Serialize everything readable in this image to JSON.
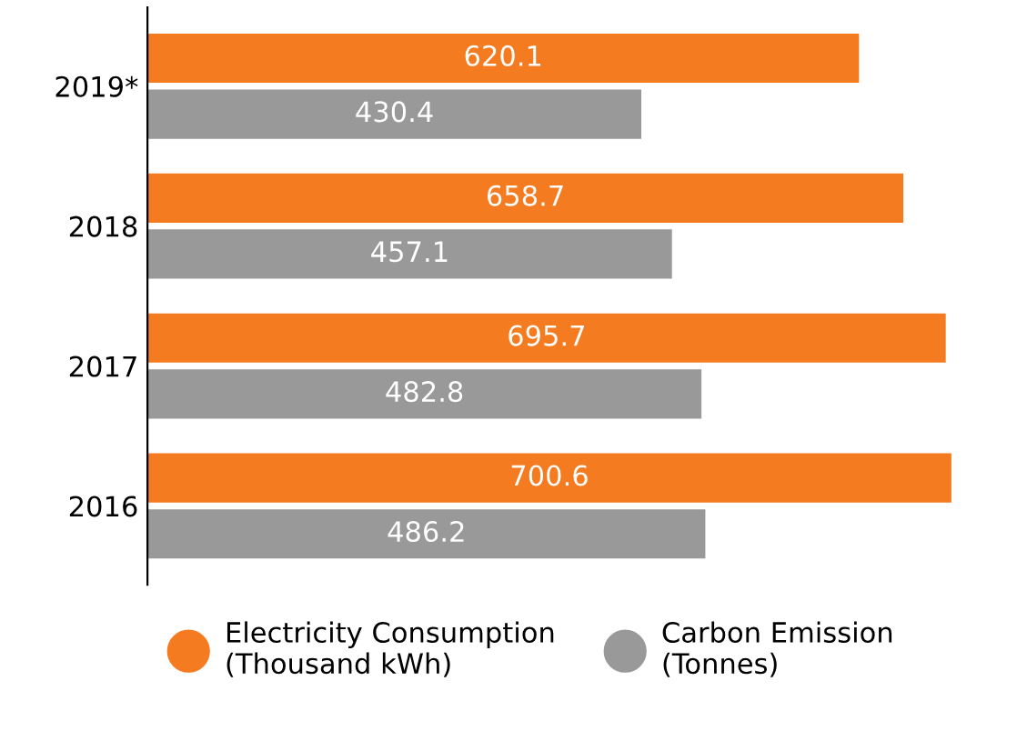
{
  "chart_data": {
    "type": "bar",
    "orientation": "horizontal",
    "categories": [
      "2019*",
      "2018",
      "2017",
      "2016"
    ],
    "series": [
      {
        "name": "Electricity Consumption\n(Thousand kWh)",
        "color": "#f47b20",
        "values": [
          620.1,
          658.7,
          695.7,
          700.6
        ]
      },
      {
        "name": "Carbon Emission\n(Tonnes)",
        "color": "#999999",
        "values": [
          430.4,
          457.1,
          482.8,
          486.2
        ]
      }
    ],
    "data_labels": true,
    "legend": "bottom",
    "tick_labels": "y",
    "grid": false
  }
}
